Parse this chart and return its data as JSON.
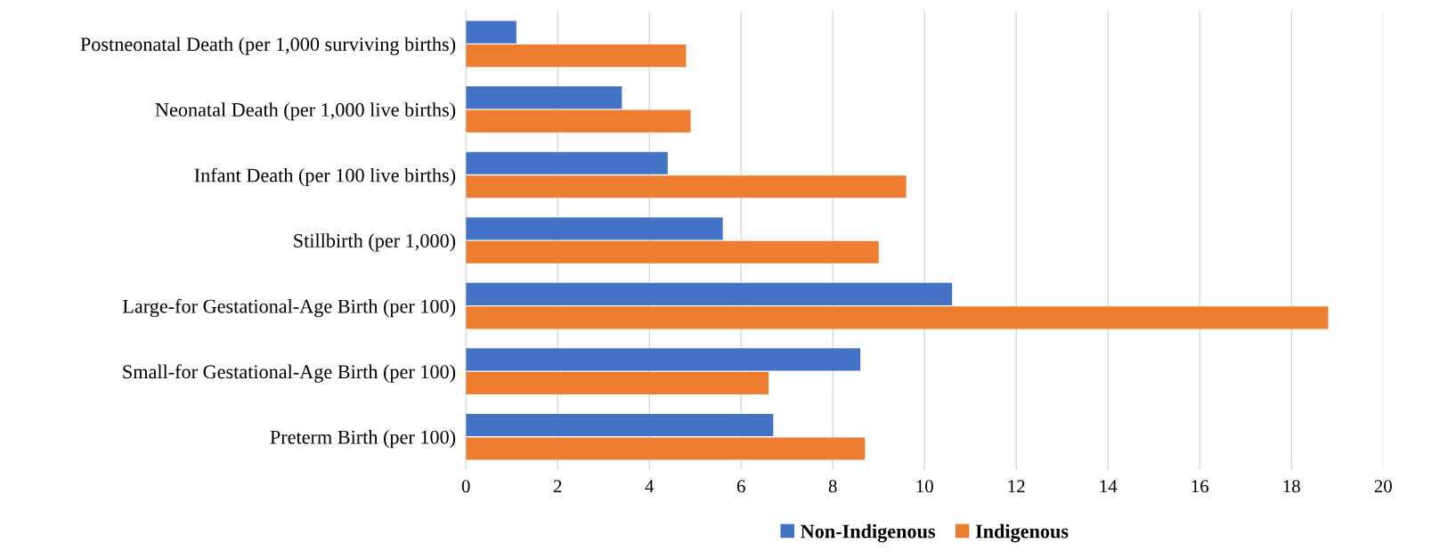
{
  "chart_data": {
    "type": "bar",
    "orientation": "horizontal",
    "categories": [
      "Postneonatal Death (per 1,000 surviving births)",
      "Neonatal Death (per 1,000 live births)",
      "Infant Death (per 100 live births)",
      "Stillbirth (per 1,000)",
      "Large-for Gestational-Age Birth (per 100)",
      "Small-for Gestational-Age Birth (per 100)",
      "Preterm Birth (per 100)"
    ],
    "series": [
      {
        "name": "Non-Indigenous",
        "color": "#4472c4",
        "values": [
          1.1,
          3.4,
          4.4,
          5.6,
          10.6,
          8.6,
          6.7
        ]
      },
      {
        "name": "Indigenous",
        "color": "#ed7d31",
        "values": [
          4.8,
          4.9,
          9.6,
          9.0,
          18.8,
          6.6,
          8.7
        ]
      }
    ],
    "xlim": [
      0,
      20
    ],
    "xticks": [
      0,
      2,
      4,
      6,
      8,
      10,
      12,
      14,
      16,
      18,
      20
    ],
    "grid": "x",
    "legend": "bottom"
  }
}
